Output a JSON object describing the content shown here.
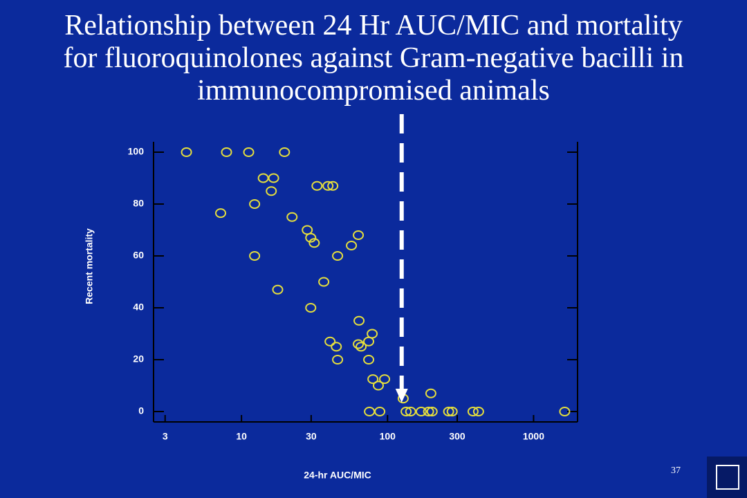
{
  "chart_data": {
    "type": "scatter",
    "title": "Relationship between 24 Hr AUC/MIC and mortality for fluoroquinolones against Gram-negative bacilli in immunocompromised animals",
    "x_label": "24-hr AUC/MIC",
    "y_label": "Recent mortality",
    "x_scale": "log",
    "xlim": [
      2.5,
      2000
    ],
    "xticks": [
      3,
      10,
      30,
      100,
      300,
      1000
    ],
    "ylim": [
      -4,
      104
    ],
    "yticks": [
      0,
      20,
      40,
      60,
      80,
      100
    ],
    "color": "#e6df3c",
    "threshold": 125,
    "x": [
      4.2,
      7.9,
      11.2,
      19.7,
      14.1,
      16.6,
      16.0,
      12.3,
      7.2,
      32.9,
      39.1,
      42.2,
      22.2,
      28.2,
      29.8,
      31.5,
      63.1,
      56.6,
      12.3,
      45.5,
      17.7,
      36.6,
      29.8,
      63.8,
      78.5,
      40.4,
      44.6,
      63.1,
      65.9,
      74.3,
      45.5,
      74.3,
      79.4,
      95.5,
      86.5,
      128,
      198,
      75.2,
      88.5,
      134,
      144,
      170,
      191,
      202,
      262,
      277,
      385,
      420,
      1633
    ],
    "values": [
      100,
      100,
      100,
      100,
      90,
      90,
      85,
      80,
      76.5,
      87,
      87,
      87,
      75,
      70,
      67,
      65,
      68,
      64,
      60,
      60,
      47,
      50,
      40,
      35,
      30,
      27,
      25,
      26,
      25,
      27,
      20,
      20,
      12.5,
      12.5,
      10,
      5,
      7,
      0,
      0,
      0,
      0,
      0,
      0,
      0,
      0,
      0,
      0,
      0,
      0
    ]
  },
  "page_number": "37"
}
